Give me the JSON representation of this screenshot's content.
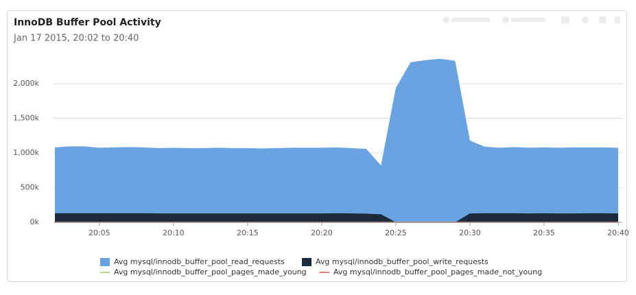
{
  "chart_data": {
    "type": "area",
    "title": "InnoDB Buffer Pool Activity",
    "subtitle": "Jan 17 2015, 20:02 to 20:40",
    "x": [
      "20:02",
      "20:03",
      "20:04",
      "20:05",
      "20:06",
      "20:07",
      "20:08",
      "20:09",
      "20:10",
      "20:11",
      "20:12",
      "20:13",
      "20:14",
      "20:15",
      "20:16",
      "20:17",
      "20:18",
      "20:19",
      "20:20",
      "20:21",
      "20:22",
      "20:23",
      "20:24",
      "20:25",
      "20:26",
      "20:27",
      "20:28",
      "20:29",
      "20:30",
      "20:31",
      "20:32",
      "20:33",
      "20:34",
      "20:35",
      "20:36",
      "20:37",
      "20:38",
      "20:39",
      "20:40"
    ],
    "xticks": [
      "20:05",
      "20:10",
      "20:15",
      "20:20",
      "20:25",
      "20:30",
      "20:35",
      "20:40"
    ],
    "ylim": [
      0,
      2500000
    ],
    "yticks": [
      {
        "value": 0,
        "label": "0k"
      },
      {
        "value": 500000,
        "label": "500k"
      },
      {
        "value": 1000000,
        "label": "1,000k"
      },
      {
        "value": 1500000,
        "label": "1,500k"
      },
      {
        "value": 2000000,
        "label": "2,000k"
      }
    ],
    "grid": true,
    "series": [
      {
        "name": "Avg mysql/innodb_buffer_pool_read_requests",
        "color": "#6aa3e2",
        "kind": "area",
        "values": [
          1080000,
          1095000,
          1095000,
          1075000,
          1080000,
          1085000,
          1080000,
          1070000,
          1075000,
          1070000,
          1070000,
          1075000,
          1070000,
          1070000,
          1065000,
          1070000,
          1075000,
          1075000,
          1075000,
          1080000,
          1070000,
          1060000,
          820000,
          1940000,
          2310000,
          2340000,
          2360000,
          2330000,
          1180000,
          1090000,
          1075000,
          1085000,
          1075000,
          1080000,
          1075000,
          1080000,
          1080000,
          1080000,
          1075000
        ]
      },
      {
        "name": "Avg mysql/innodb_buffer_pool_write_requests",
        "color": "#1c2b3c",
        "kind": "area",
        "values": [
          130000,
          130000,
          130000,
          130000,
          130000,
          130000,
          130000,
          128000,
          128000,
          128000,
          128000,
          128000,
          128000,
          128000,
          128000,
          128000,
          128000,
          128000,
          128000,
          130000,
          128000,
          125000,
          115000,
          0,
          0,
          0,
          0,
          0,
          128000,
          130000,
          130000,
          130000,
          128000,
          130000,
          128000,
          128000,
          130000,
          130000,
          128000
        ]
      },
      {
        "name": "Avg mysql/innodb_buffer_pool_pages_made_young",
        "color": "#9ed36a",
        "kind": "line",
        "values": [
          0,
          0,
          0,
          0,
          0,
          0,
          0,
          0,
          0,
          0,
          0,
          0,
          0,
          0,
          0,
          0,
          0,
          0,
          0,
          0,
          0,
          0,
          0,
          0,
          0,
          0,
          0,
          0,
          0,
          0,
          0,
          0,
          0,
          0,
          0,
          0,
          0,
          0,
          0
        ]
      },
      {
        "name": "Avg mysql/innodb_buffer_pool_pages_made_not_young",
        "color": "#d9534f",
        "kind": "line",
        "values": [
          0,
          0,
          0,
          0,
          0,
          0,
          0,
          0,
          0,
          0,
          0,
          0,
          0,
          0,
          0,
          0,
          0,
          0,
          0,
          0,
          0,
          0,
          0,
          0,
          0,
          0,
          0,
          0,
          0,
          0,
          0,
          0,
          0,
          0,
          0,
          0,
          0,
          0,
          0
        ]
      }
    ]
  }
}
